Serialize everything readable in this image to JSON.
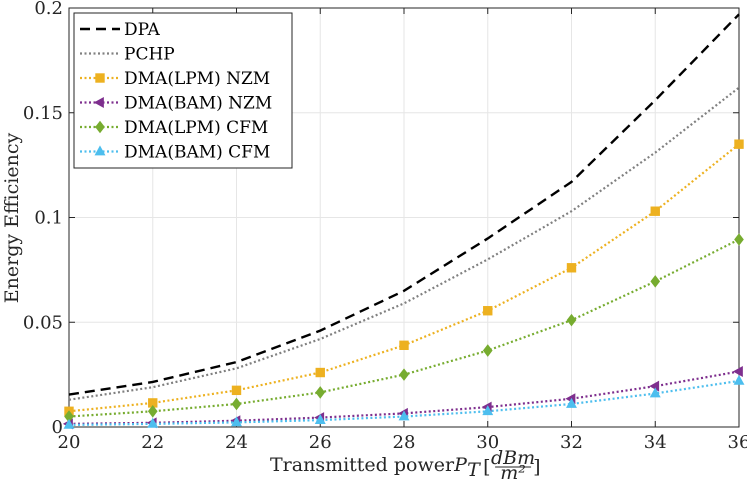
{
  "chart_data": {
    "type": "line",
    "xlabel": "Transmitted power P_T [dBm/m^2]",
    "xlabel_parts": {
      "main": "Transmitted power ",
      "sym": "P",
      "sub": "T",
      "num": "dBm",
      "den": "m²"
    },
    "ylabel": "Energy Efficiency",
    "xlim": [
      20,
      36
    ],
    "ylim": [
      0,
      0.2
    ],
    "xticks": [
      20,
      22,
      24,
      26,
      28,
      30,
      32,
      34,
      36
    ],
    "xtick_labels": [
      "20",
      "22",
      "24",
      "26",
      "28",
      "30",
      "32",
      "34",
      "36"
    ],
    "yticks": [
      0,
      0.05,
      0.1,
      0.15,
      0.2
    ],
    "ytick_labels": [
      "0",
      "0.05",
      "0.1",
      "0.15",
      "0.2"
    ],
    "grid": true,
    "legend_position": "top-left",
    "x": [
      20,
      22,
      24,
      26,
      28,
      30,
      32,
      34,
      36
    ],
    "series": [
      {
        "name": "DPA",
        "color": "#000000",
        "dash": "dashed",
        "marker": "none",
        "values": [
          0.0155,
          0.0215,
          0.031,
          0.046,
          0.065,
          0.09,
          0.117,
          0.156,
          0.197
        ]
      },
      {
        "name": "PCHP",
        "color": "#808080",
        "dash": "dotted",
        "marker": "none",
        "values": [
          0.013,
          0.019,
          0.028,
          0.042,
          0.059,
          0.08,
          0.103,
          0.131,
          0.162
        ]
      },
      {
        "name": "DMA(LPM) NZM",
        "color": "#EDB120",
        "dash": "dotted",
        "marker": "square",
        "values": [
          0.0075,
          0.0115,
          0.0175,
          0.026,
          0.039,
          0.0555,
          0.076,
          0.103,
          0.135
        ]
      },
      {
        "name": "DMA(BAM) NZM",
        "color": "#7E2F8E",
        "dash": "dotted",
        "marker": "triangle-left",
        "values": [
          0.0015,
          0.002,
          0.003,
          0.0045,
          0.0065,
          0.0095,
          0.0135,
          0.0195,
          0.0265
        ]
      },
      {
        "name": "DMA(LPM) CFM",
        "color": "#77AC30",
        "dash": "dotted",
        "marker": "diamond",
        "values": [
          0.005,
          0.0075,
          0.011,
          0.0165,
          0.025,
          0.0365,
          0.051,
          0.0695,
          0.0895
        ]
      },
      {
        "name": "DMA(BAM) CFM",
        "color": "#4DBEEE",
        "dash": "dotted",
        "marker": "triangle-up",
        "values": [
          0.001,
          0.0015,
          0.0022,
          0.0033,
          0.005,
          0.0075,
          0.011,
          0.016,
          0.022
        ]
      }
    ]
  }
}
